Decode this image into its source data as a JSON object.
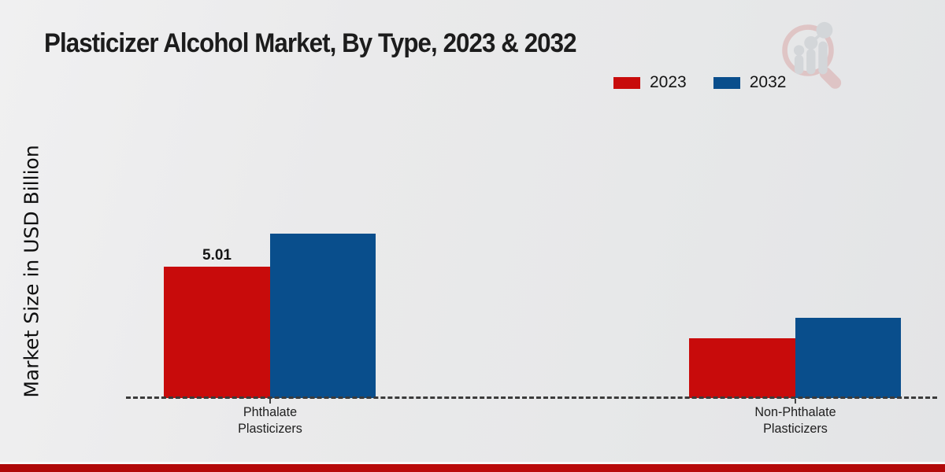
{
  "page": {
    "title": "Plasticizer Alcohol Market, By Type, 2023 & 2032"
  },
  "icons": {
    "logo": "magnifier-bar-chart-logo"
  },
  "chart_data": {
    "type": "bar",
    "title": "Plasticizer Alcohol Market, By Type, 2023 & 2032",
    "xlabel": "",
    "ylabel": "Market Size in USD Billion",
    "categories": [
      "Phthalate Plasticizers",
      "Non-Phthalate Plasticizers"
    ],
    "series": [
      {
        "name": "2023",
        "color": "#c80b0b",
        "values": [
          5.01,
          2.28
        ]
      },
      {
        "name": "2032",
        "color": "#094e8c",
        "values": [
          6.27,
          3.06
        ]
      }
    ],
    "value_label": {
      "text": "5.01",
      "category_index": 0,
      "series_index": 0
    },
    "legend_position": "top-right",
    "grid": false,
    "baseline_style": "dashed",
    "ylim": [
      0,
      7.5
    ],
    "colors": {
      "accent_red": "#c80b0b",
      "accent_blue": "#094e8c",
      "footer_bar": "#b40a0a"
    }
  }
}
